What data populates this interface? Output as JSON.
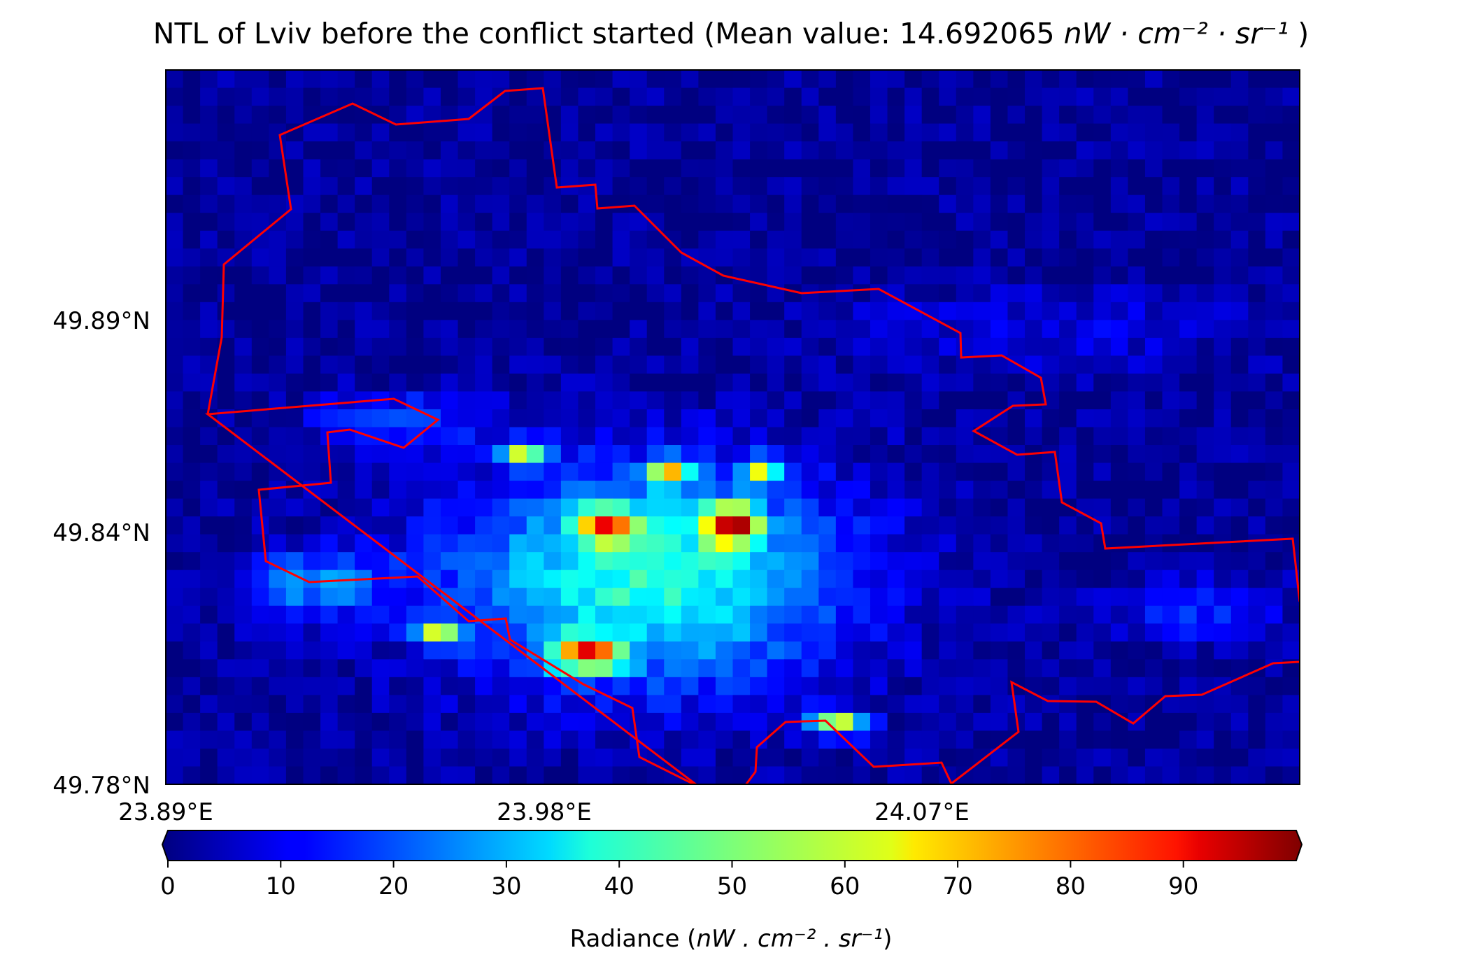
{
  "title": {
    "prefix": "NTL of Lviv before the conflict started (Mean value: 14.692065 ",
    "unit_math": "nW · cm⁻² · sr⁻¹",
    "suffix": " )"
  },
  "chart_data": {
    "type": "heatmap",
    "x_ticks": [
      "23.89°E",
      "23.98°E",
      "24.07°E"
    ],
    "x_tick_values": [
      23.89,
      23.98,
      24.07
    ],
    "y_ticks": [
      "49.89°N",
      "49.84°N",
      "49.78°N"
    ],
    "y_tick_values": [
      49.89,
      49.84,
      49.78
    ],
    "xlim": [
      23.89,
      24.16
    ],
    "ylim": [
      49.78,
      49.945
    ],
    "mean_value": 14.692065,
    "colormap": "jet",
    "colorbar": {
      "ticks": [
        "0",
        "10",
        "20",
        "30",
        "40",
        "50",
        "60",
        "70",
        "80",
        "90"
      ],
      "tick_values": [
        0,
        10,
        20,
        30,
        40,
        50,
        60,
        70,
        80,
        90
      ],
      "range": [
        0,
        100
      ],
      "extend": "both",
      "label_prefix": "Radiance (",
      "label_math": "nW . cm⁻² . sr⁻¹",
      "label_suffix": ")"
    },
    "boundary_color": "#ff0000",
    "hotspots": [
      {
        "x": 24.025,
        "y": 49.84,
        "peak": 99,
        "sx": 0.006,
        "sy": 0.0045
      },
      {
        "x": 23.995,
        "y": 49.84,
        "peak": 78,
        "sx": 0.007,
        "sy": 0.004
      },
      {
        "x": 23.975,
        "y": 49.856,
        "peak": 72,
        "sx": 0.005,
        "sy": 0.003
      },
      {
        "x": 23.99,
        "y": 49.81,
        "peak": 88,
        "sx": 0.008,
        "sy": 0.004
      },
      {
        "x": 23.955,
        "y": 49.815,
        "peak": 66,
        "sx": 0.005,
        "sy": 0.003
      },
      {
        "x": 24.05,
        "y": 49.794,
        "peak": 68,
        "sx": 0.007,
        "sy": 0.003
      },
      {
        "x": 24.01,
        "y": 49.852,
        "peak": 74,
        "sx": 0.005,
        "sy": 0.003
      },
      {
        "x": 24.032,
        "y": 49.852,
        "peak": 66,
        "sx": 0.004,
        "sy": 0.003
      }
    ]
  }
}
